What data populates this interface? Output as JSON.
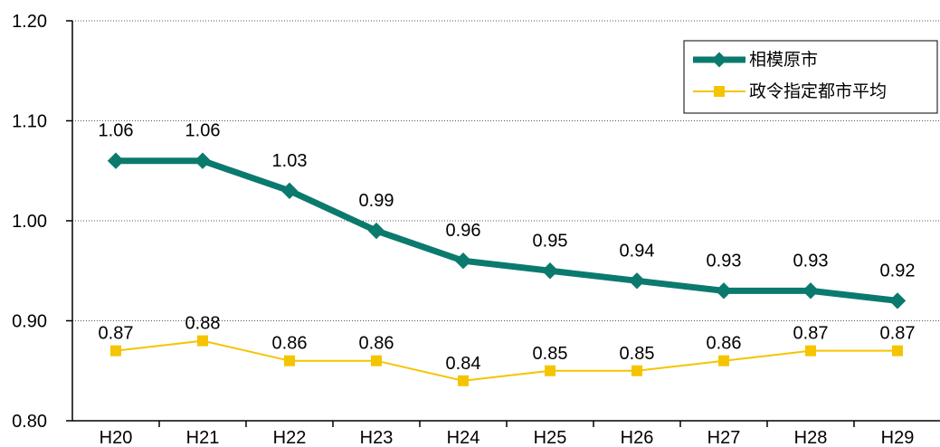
{
  "chart_data": {
    "type": "line",
    "categories": [
      "H20",
      "H21",
      "H22",
      "H23",
      "H24",
      "H25",
      "H26",
      "H27",
      "H28",
      "H29"
    ],
    "ylim": [
      0.8,
      1.2
    ],
    "yticks": [
      "0.80",
      "0.90",
      "1.00",
      "1.10",
      "1.20"
    ],
    "grid": "horizontal dotted",
    "legend_position": "top-right",
    "series": [
      {
        "name": "相模原市",
        "values": [
          1.06,
          1.06,
          1.03,
          0.99,
          0.96,
          0.95,
          0.94,
          0.93,
          0.93,
          0.92
        ],
        "labels": [
          "1.06",
          "1.06",
          "1.03",
          "0.99",
          "0.96",
          "0.95",
          "0.94",
          "0.93",
          "0.93",
          "0.92"
        ],
        "color": "#0b7a6e",
        "marker": "diamond"
      },
      {
        "name": "政令指定都市平均",
        "values": [
          0.87,
          0.88,
          0.86,
          0.86,
          0.84,
          0.85,
          0.85,
          0.86,
          0.87,
          0.87
        ],
        "labels": [
          "0.87",
          "0.88",
          "0.86",
          "0.86",
          "0.84",
          "0.85",
          "0.85",
          "0.86",
          "0.87",
          "0.87"
        ],
        "color": "#f5c400",
        "marker": "square"
      }
    ]
  }
}
